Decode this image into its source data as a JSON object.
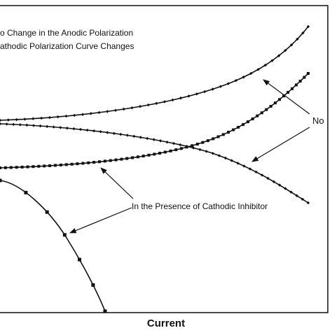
{
  "annotations": {
    "line1": "o Change in the Anodic Polarization",
    "line2": "athodic Polarization Curve Changes",
    "no_label": "No",
    "inhibitor_label": "In the Presence of Cathodic Inhibitor"
  },
  "x_axis_label": "Current"
}
